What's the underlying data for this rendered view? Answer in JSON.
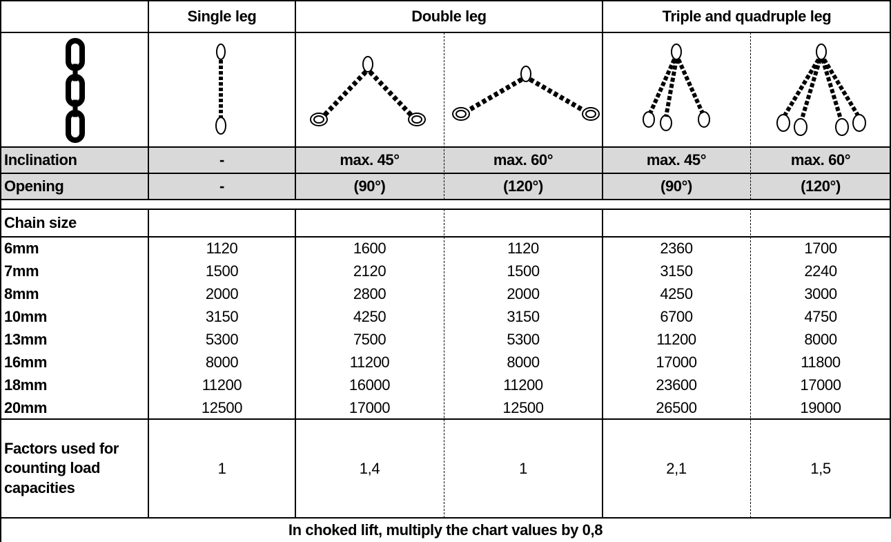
{
  "header": {
    "columns": [
      "Single leg",
      "Double leg",
      "Triple and quadruple leg"
    ]
  },
  "angles": {
    "rows": [
      {
        "label": "Inclination",
        "values": [
          "-",
          "max. 45°",
          "max. 60°",
          "max. 45°",
          "max. 60°"
        ]
      },
      {
        "label": "Opening",
        "values": [
          "-",
          "(90°)",
          "(120°)",
          "(90°)",
          "(120°)"
        ]
      }
    ]
  },
  "table": {
    "header": "Chain size",
    "rows": [
      {
        "size": "6mm",
        "values": [
          1120,
          1600,
          1120,
          2360,
          1700
        ]
      },
      {
        "size": "7mm",
        "values": [
          1500,
          2120,
          1500,
          3150,
          2240
        ]
      },
      {
        "size": "8mm",
        "values": [
          2000,
          2800,
          2000,
          4250,
          3000
        ]
      },
      {
        "size": "10mm",
        "values": [
          3150,
          4250,
          3150,
          6700,
          4750
        ]
      },
      {
        "size": "13mm",
        "values": [
          5300,
          7500,
          5300,
          11200,
          8000
        ]
      },
      {
        "size": "16mm",
        "values": [
          8000,
          11200,
          8000,
          17000,
          11800
        ]
      },
      {
        "size": "18mm",
        "values": [
          11200,
          16000,
          11200,
          23600,
          17000
        ]
      },
      {
        "size": "20mm",
        "values": [
          12500,
          17000,
          12500,
          26500,
          19000
        ]
      }
    ]
  },
  "factors": {
    "label": "Factors used for counting load capacities",
    "values": [
      "1",
      "1,4",
      "1",
      "2,1",
      "1,5"
    ]
  },
  "footer": "In choked lift, multiply the chart values by 0,8"
}
